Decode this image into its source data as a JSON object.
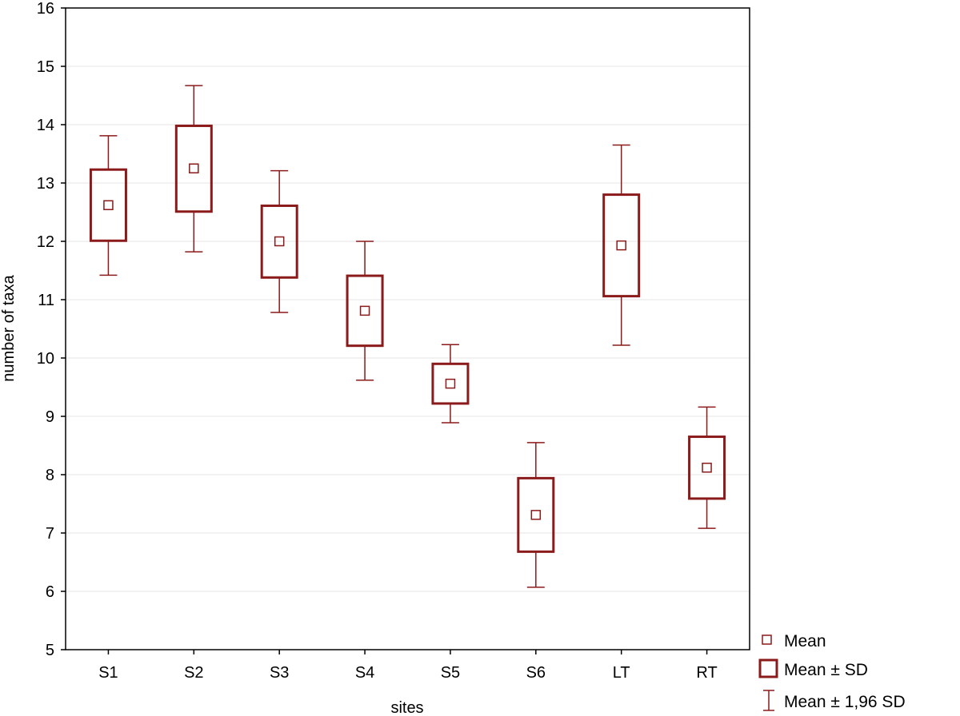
{
  "chart_data": {
    "type": "box",
    "xlabel": "sites",
    "ylabel": "number of taxa",
    "ylim": [
      5,
      16
    ],
    "yticks": [
      5,
      6,
      7,
      8,
      9,
      10,
      11,
      12,
      13,
      14,
      15,
      16
    ],
    "grid": true,
    "categories": [
      "S1",
      "S2",
      "S3",
      "S4",
      "S5",
      "S6",
      "LT",
      "RT"
    ],
    "series": [
      {
        "category": "S1",
        "mean": 12.62,
        "sd_low": 12.01,
        "sd_high": 13.23,
        "ci_low": 11.42,
        "ci_high": 13.81
      },
      {
        "category": "S2",
        "mean": 13.25,
        "sd_low": 12.51,
        "sd_high": 13.98,
        "ci_low": 11.82,
        "ci_high": 14.67
      },
      {
        "category": "S3",
        "mean": 12.0,
        "sd_low": 11.38,
        "sd_high": 12.61,
        "ci_low": 10.78,
        "ci_high": 13.21
      },
      {
        "category": "S4",
        "mean": 10.81,
        "sd_low": 10.21,
        "sd_high": 11.41,
        "ci_low": 9.62,
        "ci_high": 12.0
      },
      {
        "category": "S5",
        "mean": 9.56,
        "sd_low": 9.22,
        "sd_high": 9.9,
        "ci_low": 8.89,
        "ci_high": 10.23
      },
      {
        "category": "S6",
        "mean": 7.31,
        "sd_low": 6.68,
        "sd_high": 7.94,
        "ci_low": 6.07,
        "ci_high": 8.55
      },
      {
        "category": "LT",
        "mean": 11.93,
        "sd_low": 11.06,
        "sd_high": 12.8,
        "ci_low": 10.22,
        "ci_high": 13.65
      },
      {
        "category": "RT",
        "mean": 8.12,
        "sd_low": 7.59,
        "sd_high": 8.65,
        "ci_low": 7.08,
        "ci_high": 9.16
      }
    ],
    "legend_position": "bottom-right",
    "legend": [
      {
        "key": "mean",
        "label": "Mean"
      },
      {
        "key": "sd",
        "label": "Mean ± SD"
      },
      {
        "key": "ci",
        "label": "Mean ± 1,96 SD"
      }
    ],
    "color": "#8b1a1a"
  }
}
